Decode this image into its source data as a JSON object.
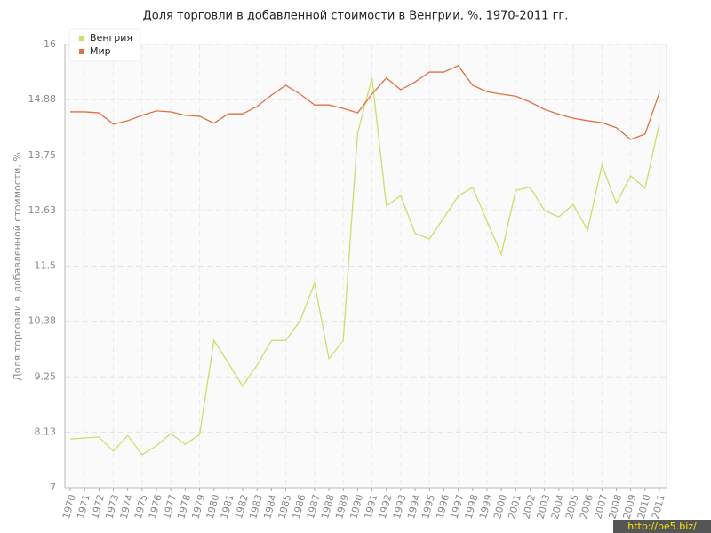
{
  "chart_data": {
    "type": "line",
    "title": "Доля торговли в добавленной стоимости в Венгрии, %, 1970-2011 гг.",
    "y_label": "Доля торговли в добавленной стоимости, %",
    "watermark": "http://be5.biz/",
    "categories": [
      "1970",
      "1971",
      "1972",
      "1973",
      "1974",
      "1975",
      "1976",
      "1977",
      "1978",
      "1979",
      "1980",
      "1981",
      "1982",
      "1983",
      "1984",
      "1985",
      "1986",
      "1987",
      "1988",
      "1989",
      "1990",
      "1991",
      "1992",
      "1993",
      "1994",
      "1995",
      "1996",
      "1997",
      "1998",
      "1999",
      "2000",
      "2001",
      "2002",
      "2003",
      "2004",
      "2005",
      "2006",
      "2007",
      "2008",
      "2009",
      "2010",
      "2011"
    ],
    "series": [
      {
        "name": "Венгрия",
        "color": "#c8e06b",
        "values": [
          7.99,
          8.01,
          8.03,
          7.74,
          8.06,
          7.67,
          7.85,
          8.1,
          7.88,
          8.08,
          9.99,
          9.53,
          9.06,
          9.49,
          9.99,
          9.99,
          10.39,
          11.15,
          9.62,
          9.99,
          14.2,
          15.32,
          12.72,
          12.93,
          12.16,
          12.05,
          12.48,
          12.92,
          13.1,
          12.41,
          11.74,
          13.04,
          13.1,
          12.63,
          12.5,
          12.75,
          12.23,
          13.55,
          12.77,
          13.33,
          13.08,
          14.4
        ]
      },
      {
        "name": "Мир",
        "color": "#e07040",
        "values": [
          14.63,
          14.63,
          14.61,
          14.38,
          14.45,
          14.56,
          14.65,
          14.63,
          14.56,
          14.54,
          14.4,
          14.59,
          14.59,
          14.74,
          14.97,
          15.17,
          14.99,
          14.77,
          14.77,
          14.7,
          14.61,
          14.99,
          15.32,
          15.08,
          15.24,
          15.44,
          15.44,
          15.57,
          15.17,
          15.04,
          14.99,
          14.95,
          14.83,
          14.68,
          14.58,
          14.5,
          14.45,
          14.41,
          14.31,
          14.07,
          14.18,
          15.02
        ]
      }
    ],
    "ylim": [
      7,
      16
    ],
    "yticks": [
      7,
      8.13,
      9.25,
      10.38,
      11.5,
      12.63,
      13.75,
      14.88,
      16
    ],
    "grid": true,
    "legend": "top-left"
  }
}
